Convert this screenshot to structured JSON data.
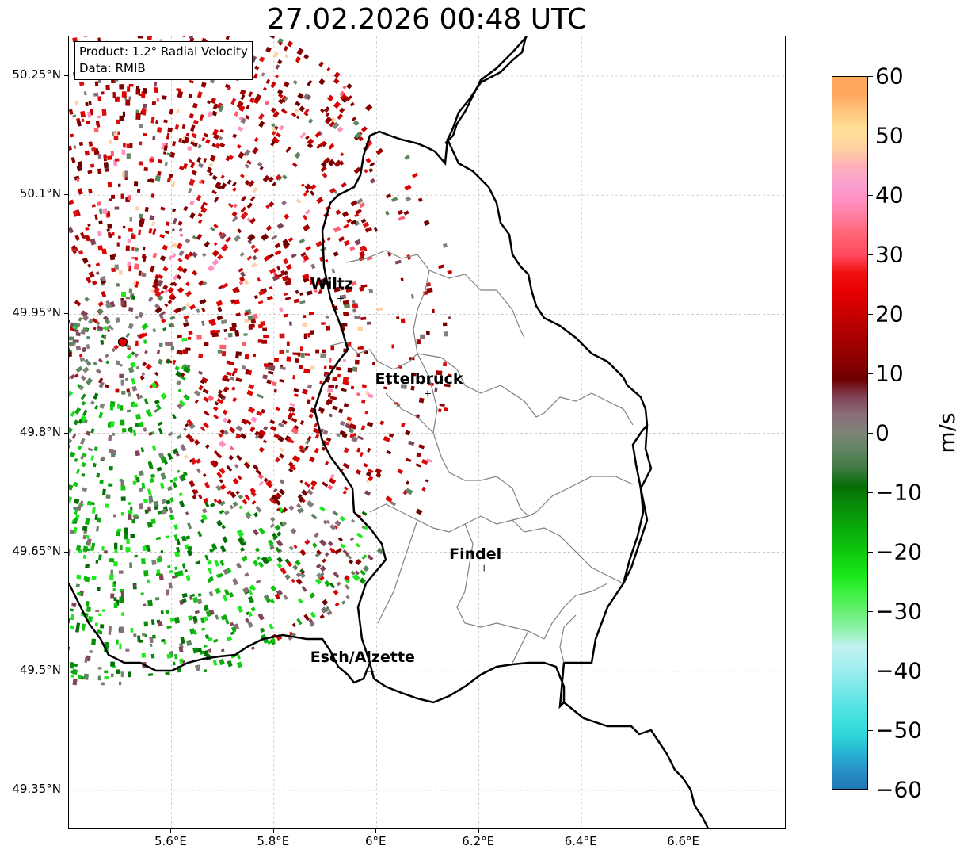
{
  "title": "27.02.2026 00:48 UTC",
  "infobox": {
    "product": "Product: 1.2° Radial Velocity",
    "data": "Data: RMIB"
  },
  "axes": {
    "lat_labels": [
      "50.25°N",
      "50.1°N",
      "49.95°N",
      "49.8°N",
      "49.65°N",
      "49.5°N",
      "49.35°N"
    ],
    "lon_labels": [
      "5.6°E",
      "5.8°E",
      "6°E",
      "6.2°E",
      "6.4°E",
      "6.6°E"
    ]
  },
  "colorbar": {
    "unit": "m/s",
    "ticks": [
      "60",
      "50",
      "40",
      "30",
      "20",
      "10",
      "0",
      "−10",
      "−20",
      "−30",
      "−40",
      "−50",
      "−60"
    ],
    "range": [
      -60,
      60
    ]
  },
  "cities": [
    {
      "name": "Wiltz"
    },
    {
      "name": "Ettelbruck"
    },
    {
      "name": "Findel"
    },
    {
      "name": "Esch/Alzette"
    }
  ],
  "chart_data": {
    "type": "heatmap",
    "title": "27.02.2026 00:48 UTC",
    "x_range": [
      5.4,
      6.8
    ],
    "y_range": [
      49.3,
      50.3
    ],
    "x_ticks": [
      5.6,
      5.8,
      6.0,
      6.2,
      6.4,
      6.6
    ],
    "y_ticks": [
      50.25,
      50.1,
      49.95,
      49.8,
      49.65,
      49.5,
      49.35
    ],
    "grid": true,
    "colorbar_label": "m/s",
    "colorbar_range": [
      -60,
      60
    ],
    "radar_site": {
      "lon": 5.505,
      "lat": 49.915
    },
    "cities": [
      {
        "name": "Wiltz",
        "lon": 5.93,
        "lat": 49.97
      },
      {
        "name": "Ettelbruck",
        "lon": 6.1,
        "lat": 49.85
      },
      {
        "name": "Findel",
        "lon": 6.21,
        "lat": 49.63
      },
      {
        "name": "Esch/Alzette",
        "lon": 5.99,
        "lat": 49.5
      }
    ]
  }
}
